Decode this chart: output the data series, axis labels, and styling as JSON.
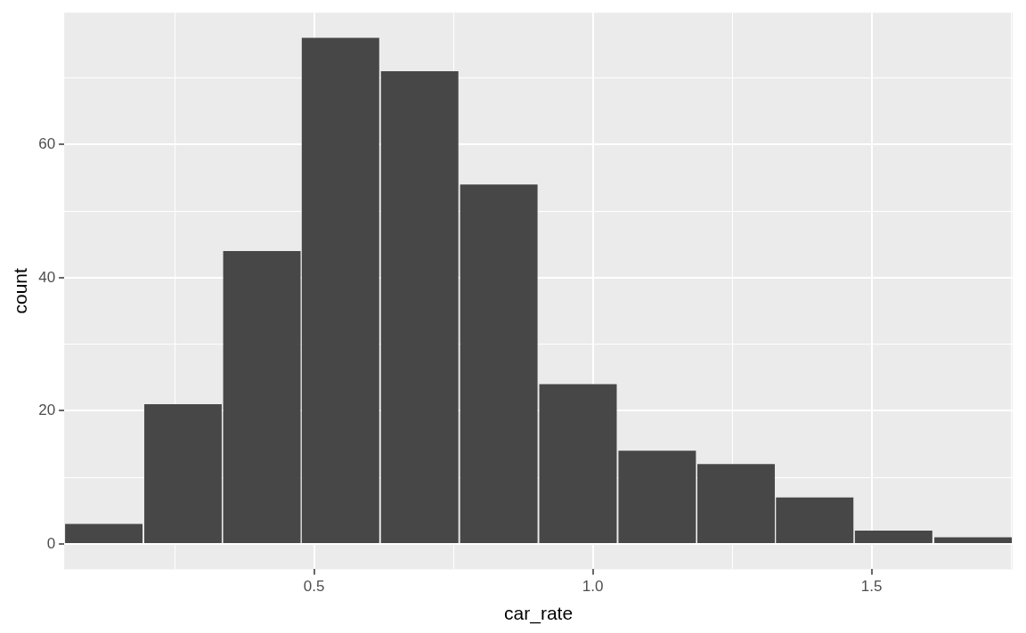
{
  "chart_data": {
    "type": "histogram",
    "xlabel": "car_rate",
    "ylabel": "count",
    "bins": [
      0.052,
      0.194,
      0.336,
      0.477,
      0.618,
      0.761,
      0.902,
      1.045,
      1.186,
      1.328,
      1.468,
      1.611,
      1.753
    ],
    "values": [
      3,
      21,
      44,
      76,
      71,
      54,
      24,
      14,
      12,
      7,
      2,
      1
    ],
    "color": "#474747",
    "xlim": [
      0.052,
      1.753
    ],
    "ylim": [
      -3.8,
      79.8
    ],
    "xticks": [
      {
        "value": 0.25,
        "label": null
      },
      0.5,
      {
        "value": 0.75,
        "label": null
      },
      {
        "value": 1,
        "label": "1.0"
      },
      {
        "value": 1.25,
        "label": null
      },
      1.5,
      {
        "value": 1.75,
        "label": null
      }
    ],
    "yticks": [
      0,
      {
        "value": 10,
        "label": null
      },
      20,
      {
        "value": 30,
        "label": null
      },
      40,
      {
        "value": 50,
        "label": null
      },
      60,
      {
        "value": 70,
        "label": null
      }
    ],
    "grid": true
  }
}
